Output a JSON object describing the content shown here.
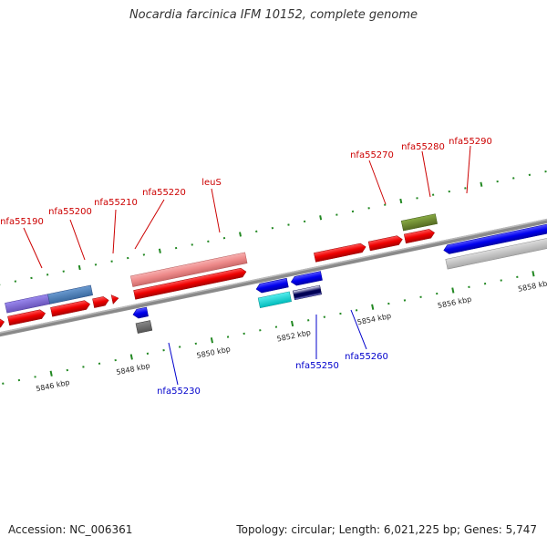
{
  "title": "Nocardia farcinica IFM 10152, complete genome",
  "footer": {
    "accession": "Accession: NC_006361",
    "summary": "Topology: circular; Length: 6,021,225 bp; Genes: 5,747"
  },
  "axis": {
    "ticks": [
      {
        "label": "5846 kbp"
      },
      {
        "label": "5848 kbp"
      },
      {
        "label": "5850 kbp"
      },
      {
        "label": "5852 kbp"
      },
      {
        "label": "5854 kbp"
      },
      {
        "label": "5856 kbp"
      },
      {
        "label": "5858 kbp"
      }
    ]
  },
  "gene_labels": {
    "forward": [
      "nfa55190",
      "nfa55200",
      "nfa55210",
      "nfa55220",
      "leuS",
      "nfa55270",
      "nfa55280",
      "nfa55290"
    ],
    "reverse": [
      "nfa55230",
      "nfa55250",
      "nfa55260"
    ]
  },
  "colors": {
    "forward_gene": "#ee0000",
    "reverse_gene": "#0000ee",
    "forward_label": "#cc0000",
    "reverse_label": "#0000cc",
    "backbone": "#888888",
    "tick": "#228822"
  }
}
